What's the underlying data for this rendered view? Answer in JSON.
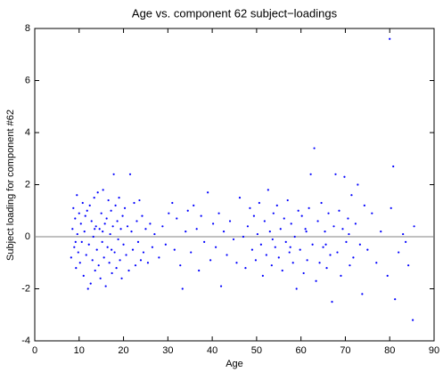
{
  "chart_data": {
    "type": "scatter",
    "title": "Age vs. component 62 subject−loadings",
    "x_label": "Age",
    "y_label": "Subject loading for component #62",
    "color": "#0000ff",
    "reference_line": 0,
    "xlim": [
      0,
      90
    ],
    "xticks": [
      0,
      10,
      20,
      30,
      40,
      50,
      60,
      70,
      80,
      90
    ],
    "ylim": [
      -4,
      8
    ],
    "yticks": [
      -4,
      -2,
      0,
      2,
      4,
      6,
      8
    ],
    "x": [
      8.2,
      8.5,
      8.7,
      8.9,
      9.1,
      9.3,
      9.5,
      9.6,
      9.8,
      10.0,
      10.2,
      10.4,
      10.6,
      10.8,
      11.0,
      11.2,
      11.4,
      11.6,
      11.8,
      12.0,
      12.2,
      12.4,
      12.6,
      12.8,
      13.0,
      13.2,
      13.4,
      13.6,
      13.8,
      14.0,
      14.2,
      14.4,
      14.6,
      14.8,
      15.0,
      15.2,
      15.4,
      15.6,
      15.8,
      16.0,
      16.2,
      16.4,
      16.6,
      16.8,
      17.0,
      17.2,
      17.4,
      17.6,
      17.8,
      18.0,
      18.2,
      18.4,
      18.6,
      18.8,
      19.0,
      19.2,
      19.4,
      19.6,
      19.8,
      20.0,
      20.3,
      20.6,
      20.9,
      21.2,
      21.5,
      21.8,
      22.1,
      22.4,
      22.7,
      23.0,
      23.3,
      23.6,
      23.9,
      24.2,
      24.5,
      25.0,
      25.5,
      26.0,
      26.5,
      27.0,
      28.0,
      28.8,
      29.5,
      30.2,
      31.0,
      31.5,
      32.0,
      32.8,
      33.3,
      34.0,
      34.5,
      35.2,
      35.8,
      36.5,
      37.0,
      37.5,
      38.2,
      39.0,
      39.6,
      40.2,
      40.8,
      41.5,
      42.0,
      42.6,
      43.3,
      44.0,
      44.8,
      45.5,
      46.2,
      47.0,
      47.5,
      48.0,
      48.5,
      49.0,
      49.4,
      49.8,
      50.2,
      50.6,
      51.0,
      51.4,
      51.8,
      52.2,
      52.6,
      53.0,
      53.4,
      53.8,
      54.2,
      54.6,
      55.0,
      55.4,
      55.8,
      56.2,
      56.6,
      57.0,
      57.4,
      57.8,
      58.2,
      58.6,
      59.0,
      59.4,
      59.8,
      60.2,
      60.6,
      61.0,
      61.4,
      61.8,
      62.2,
      62.6,
      63.0,
      63.4,
      63.8,
      64.2,
      64.6,
      65.0,
      65.4,
      65.8,
      66.2,
      66.6,
      67.0,
      67.4,
      67.8,
      68.2,
      68.6,
      69.0,
      69.4,
      69.8,
      70.2,
      70.6,
      71.0,
      71.4,
      71.8,
      72.3,
      72.8,
      73.3,
      73.8,
      74.3,
      75.0,
      76.0,
      77.0,
      78.0,
      79.5,
      80.0,
      80.3,
      80.8,
      81.2,
      82.0,
      83.0,
      83.6,
      84.2,
      85.2,
      85.5,
      9.2,
      15.3,
      17.3,
      53.6,
      61.2,
      65.6,
      70.8,
      13.5,
      57.6
    ],
    "y": [
      -0.8,
      0.3,
      1.1,
      -0.4,
      0.7,
      -1.2,
      1.6,
      0.1,
      -0.6,
      0.9,
      -1.0,
      0.5,
      -0.2,
      1.3,
      -1.5,
      0.2,
      0.8,
      -0.7,
      1.0,
      -2.0,
      -0.3,
      1.2,
      -1.8,
      0.6,
      -0.9,
      0.0,
      1.5,
      -1.3,
      0.4,
      -0.5,
      1.7,
      -1.1,
      0.3,
      -1.6,
      0.9,
      -0.2,
      1.8,
      -0.8,
      0.5,
      -1.9,
      0.7,
      -0.4,
      1.4,
      -1.0,
      0.1,
      1.0,
      -1.4,
      0.4,
      2.4,
      -0.6,
      1.2,
      -1.2,
      0.6,
      -0.1,
      1.5,
      -0.9,
      0.3,
      -1.6,
      0.8,
      -0.3,
      1.1,
      -0.7,
      0.4,
      -1.3,
      2.4,
      0.2,
      -0.5,
      1.3,
      -1.1,
      0.6,
      -0.2,
      1.4,
      -0.9,
      0.8,
      -0.6,
      0.3,
      -1.0,
      0.5,
      -0.4,
      0.1,
      -0.8,
      0.4,
      -0.3,
      0.9,
      1.3,
      -0.5,
      0.7,
      -1.1,
      -2.0,
      0.2,
      1.0,
      -0.6,
      1.2,
      0.3,
      -1.3,
      0.8,
      -0.2,
      1.7,
      -0.9,
      0.5,
      -0.4,
      0.9,
      -1.9,
      0.2,
      -0.7,
      0.6,
      -0.1,
      -1.0,
      1.5,
      0.0,
      -1.2,
      0.4,
      1.1,
      -0.5,
      0.8,
      -0.9,
      0.1,
      1.3,
      -0.3,
      -1.5,
      0.6,
      -0.7,
      1.8,
      0.2,
      -1.1,
      0.9,
      -0.4,
      1.2,
      -0.8,
      0.3,
      -1.3,
      0.7,
      -0.2,
      1.4,
      -0.6,
      0.5,
      -1.0,
      0.0,
      -2.0,
      1.0,
      -0.5,
      0.8,
      -1.4,
      0.3,
      -0.9,
      1.1,
      2.4,
      -0.3,
      3.4,
      -1.7,
      0.6,
      -1.0,
      1.3,
      -0.4,
      0.2,
      -1.2,
      0.9,
      -0.7,
      -2.5,
      0.4,
      2.4,
      -0.6,
      1.0,
      -1.5,
      0.3,
      2.3,
      -0.2,
      0.7,
      -1.1,
      1.6,
      -0.8,
      0.5,
      2.0,
      -0.3,
      -2.2,
      1.2,
      -0.5,
      0.9,
      -1.0,
      0.2,
      -1.5,
      7.6,
      1.1,
      2.7,
      -2.4,
      -0.6,
      0.1,
      -0.2,
      -1.1,
      -3.2,
      0.4,
      -0.2,
      0.2,
      -0.5,
      -0.1,
      0.2,
      -0.3,
      0.1,
      0.3,
      -0.4
    ]
  }
}
